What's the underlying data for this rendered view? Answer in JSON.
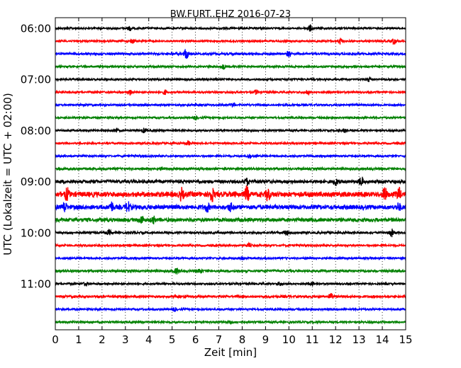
{
  "chart_data": {
    "type": "line",
    "title": "BW.FURT..EHZ 2016-07-23",
    "xlabel": "Zeit  [min]",
    "ylabel": "UTC (Lokalzeit = UTC + 02:00)",
    "xlim": [
      0,
      15
    ],
    "x_ticks": [
      "0",
      "1",
      "2",
      "3",
      "4",
      "5",
      "6",
      "7",
      "8",
      "9",
      "10",
      "11",
      "12",
      "13",
      "14",
      "15"
    ],
    "y_tick_labels": [
      "06:00",
      "07:00",
      "08:00",
      "09:00",
      "10:00",
      "11:00"
    ],
    "grid": "vertical-dotted",
    "trace_colors": [
      "#000000",
      "#ff0000",
      "#0000ff",
      "#008000"
    ],
    "traces": [
      {
        "start": "06:00",
        "amplitude": 0.25,
        "events": [
          [
            3.2,
            0.6
          ],
          [
            10.9,
            0.9
          ]
        ]
      },
      {
        "start": "06:15",
        "amplitude": 0.25,
        "events": [
          [
            3.3,
            0.6
          ],
          [
            12.2,
            0.8
          ],
          [
            14.5,
            0.9
          ]
        ]
      },
      {
        "start": "06:30",
        "amplitude": 0.3,
        "events": [
          [
            5.6,
            1.6
          ],
          [
            10.0,
            0.8
          ]
        ]
      },
      {
        "start": "06:45",
        "amplitude": 0.25,
        "events": [
          [
            7.2,
            0.6
          ]
        ]
      },
      {
        "start": "07:00",
        "amplitude": 0.25,
        "events": [
          [
            13.4,
            0.6
          ]
        ]
      },
      {
        "start": "07:15",
        "amplitude": 0.25,
        "events": [
          [
            3.2,
            0.7
          ],
          [
            4.7,
            0.6
          ],
          [
            8.6,
            0.6
          ],
          [
            10.8,
            0.6
          ]
        ]
      },
      {
        "start": "07:30",
        "amplitude": 0.25,
        "events": [
          [
            7.6,
            0.6
          ]
        ]
      },
      {
        "start": "07:45",
        "amplitude": 0.25,
        "events": [
          [
            6.0,
            0.5
          ]
        ]
      },
      {
        "start": "08:00",
        "amplitude": 0.25,
        "events": [
          [
            2.6,
            0.6
          ],
          [
            3.8,
            0.6
          ],
          [
            12.4,
            0.5
          ]
        ]
      },
      {
        "start": "08:15",
        "amplitude": 0.25,
        "events": [
          [
            5.7,
            0.6
          ]
        ]
      },
      {
        "start": "08:30",
        "amplitude": 0.25,
        "events": [
          [
            8.3,
            0.6
          ]
        ]
      },
      {
        "start": "08:45",
        "amplitude": 0.3,
        "events": [
          [
            4.6,
            0.5
          ]
        ]
      },
      {
        "start": "09:00",
        "amplitude": 0.45,
        "events": [
          [
            8.2,
            0.8
          ],
          [
            12.0,
            0.9
          ],
          [
            13.1,
            1.3
          ]
        ]
      },
      {
        "start": "09:15",
        "amplitude": 0.7,
        "events": [
          [
            0.5,
            1.6
          ],
          [
            5.4,
            1.5
          ],
          [
            6.7,
            1.9
          ],
          [
            8.2,
            2.0
          ],
          [
            9.1,
            1.6
          ],
          [
            14.1,
            1.8
          ],
          [
            14.7,
            1.6
          ]
        ]
      },
      {
        "start": "09:30",
        "amplitude": 0.6,
        "events": [
          [
            0.4,
            1.3
          ],
          [
            2.4,
            1.3
          ],
          [
            3.1,
            1.4
          ],
          [
            6.5,
            1.1
          ],
          [
            7.5,
            1.0
          ],
          [
            14.7,
            1.0
          ]
        ]
      },
      {
        "start": "09:45",
        "amplitude": 0.5,
        "events": [
          [
            3.7,
            1.0
          ],
          [
            4.2,
            0.8
          ]
        ]
      },
      {
        "start": "10:00",
        "amplitude": 0.3,
        "events": [
          [
            2.3,
            0.6
          ],
          [
            9.9,
            0.7
          ],
          [
            14.4,
            1.0
          ]
        ]
      },
      {
        "start": "10:15",
        "amplitude": 0.25,
        "events": [
          [
            8.3,
            0.5
          ]
        ]
      },
      {
        "start": "10:30",
        "amplitude": 0.25,
        "events": [
          [
            8.0,
            0.6
          ]
        ]
      },
      {
        "start": "10:45",
        "amplitude": 0.3,
        "events": [
          [
            5.2,
            0.8
          ],
          [
            6.2,
            0.6
          ]
        ]
      },
      {
        "start": "11:00",
        "amplitude": 0.25,
        "events": [
          [
            1.3,
            0.5
          ],
          [
            9.6,
            0.5
          ],
          [
            11.0,
            0.5
          ]
        ]
      },
      {
        "start": "11:15",
        "amplitude": 0.3,
        "events": [
          [
            11.8,
            0.9
          ]
        ]
      },
      {
        "start": "11:30",
        "amplitude": 0.25,
        "events": [
          [
            5.1,
            0.5
          ]
        ]
      },
      {
        "start": "11:45",
        "amplitude": 0.25,
        "events": [
          [
            7.5,
            0.5
          ]
        ]
      }
    ]
  }
}
